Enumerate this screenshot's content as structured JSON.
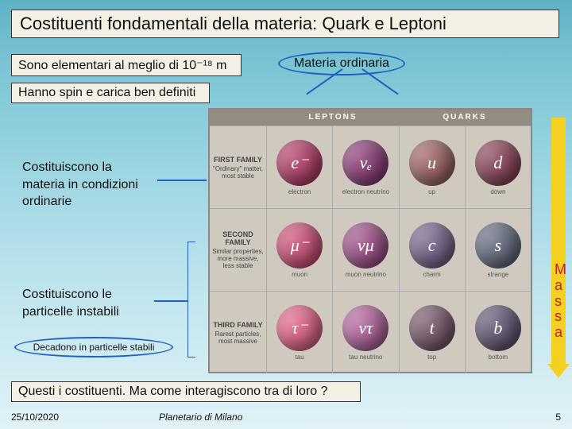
{
  "title": "Costituenti fondamentali della materia: Quark e Leptoni",
  "box_elem": "Sono elementari al meglio di 10⁻¹⁸ m",
  "ellipse": "Materia ordinaria",
  "box_spin": "Hanno spin e carica ben definiti",
  "note1": "Costituiscono la materia in condizioni ordinarie",
  "note2": "Costituiscono le particelle instabili",
  "ellipse_small": "Decadono in particelle stabili",
  "question": "Questi i costituenti. Ma come interagiscono tra di loro ?",
  "massa": [
    "M",
    "a",
    "s",
    "s",
    "a"
  ],
  "footer": {
    "date": "25/10/2020",
    "center": "Planetario di Milano",
    "num": "5"
  },
  "headers": {
    "left": "LEPTONS",
    "right": "QUARKS"
  },
  "families": [
    {
      "name": "FIRST FAMILY",
      "desc": "\"Ordinary\" matter, most stable"
    },
    {
      "name": "SECOND FAMILY",
      "desc": "Similar properties, more massive, less stable"
    },
    {
      "name": "THIRD FAMILY",
      "desc": "Rarest particles, most massive"
    }
  ],
  "particles": [
    [
      {
        "sym": "e⁻",
        "label": "electron",
        "color": "#9c3a5e"
      },
      {
        "sym": "νₑ",
        "label": "electron neutrino",
        "color": "#7a3a6a"
      },
      {
        "sym": "u",
        "label": "up",
        "color": "#8a5a5a"
      },
      {
        "sym": "d",
        "label": "down",
        "color": "#7a4050"
      }
    ],
    [
      {
        "sym": "μ⁻",
        "label": "muon",
        "color": "#b04a6a"
      },
      {
        "sym": "νμ",
        "label": "muon neutrino",
        "color": "#8a4a78"
      },
      {
        "sym": "c",
        "label": "charm",
        "color": "#6a5a7a"
      },
      {
        "sym": "s",
        "label": "strange",
        "color": "#5a6070"
      }
    ],
    [
      {
        "sym": "τ⁻",
        "label": "tau",
        "color": "#c05a78"
      },
      {
        "sym": "ντ",
        "label": "tau neutrino",
        "color": "#9a5a88"
      },
      {
        "sym": "t",
        "label": "top",
        "color": "#6a5060"
      },
      {
        "sym": "b",
        "label": "bottom",
        "color": "#5a5068"
      }
    ]
  ]
}
